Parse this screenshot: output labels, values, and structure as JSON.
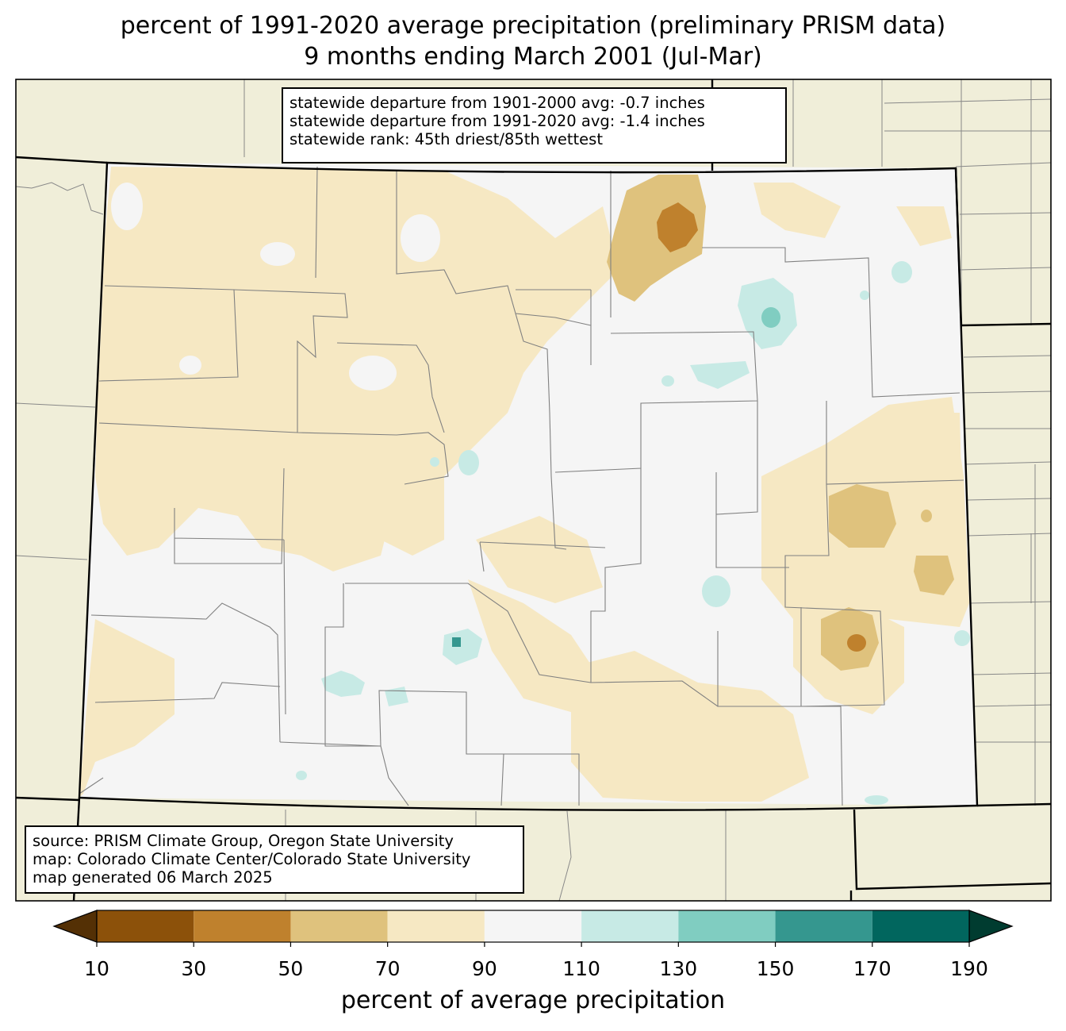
{
  "title_line1": "percent of 1991-2020 average precipitation (preliminary PRISM data)",
  "title_line2": "9 months ending March 2001 (Jul-Mar)",
  "stats_box": {
    "line1": "statewide departure from 1901-2000 avg: -0.7 inches",
    "line2": "statewide departure from 1991-2020 avg: -1.4 inches",
    "line3": "statewide rank: 45th driest/85th wettest"
  },
  "source_box": {
    "line1": "source: PRISM Climate Group, Oregon State University",
    "line2": "map: Colorado Climate Center/Colorado State University",
    "line3": "map generated 06 March 2025"
  },
  "colorbar": {
    "label": "percent of average precipitation",
    "ticks": [
      "10",
      "30",
      "50",
      "70",
      "90",
      "110",
      "130",
      "150",
      "170",
      "190"
    ],
    "below_color": "#543005",
    "above_color": "#003c30",
    "bins": [
      {
        "from": 10,
        "to": 30,
        "color": "#8c510a"
      },
      {
        "from": 30,
        "to": 50,
        "color": "#bf812d"
      },
      {
        "from": 50,
        "to": 70,
        "color": "#dfc27d"
      },
      {
        "from": 70,
        "to": 90,
        "color": "#f6e8c3"
      },
      {
        "from": 90,
        "to": 110,
        "color": "#f5f5f5"
      },
      {
        "from": 110,
        "to": 130,
        "color": "#c7eae5"
      },
      {
        "from": 130,
        "to": 150,
        "color": "#80cdc1"
      },
      {
        "from": 150,
        "to": 170,
        "color": "#35978f"
      },
      {
        "from": 170,
        "to": 190,
        "color": "#01665e"
      }
    ]
  },
  "colors": {
    "outside_land": "#f0eed9",
    "state_border": "#000000",
    "county_border": "#808080"
  }
}
